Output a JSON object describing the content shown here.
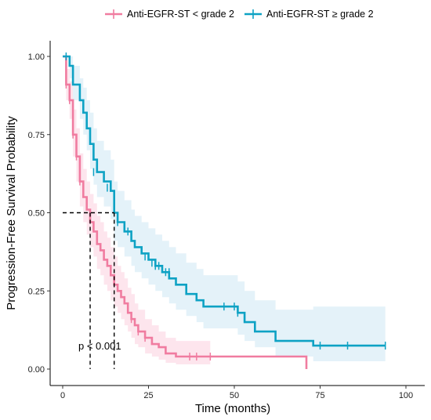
{
  "chart_data": {
    "type": "line",
    "subtype": "kaplan-meier survival curve",
    "title": "",
    "xlabel": "Time (months)",
    "ylabel": "Progression-Free Survival Probability",
    "xlim": [
      0,
      100
    ],
    "ylim": [
      0,
      1
    ],
    "xticks": [
      0,
      25,
      50,
      75,
      100
    ],
    "yticks": [
      "0.00",
      "0.25",
      "0.50",
      "0.75",
      "1.00"
    ],
    "grid": false,
    "legend_position": "top",
    "annotation": "p < 0.001",
    "median_reference": {
      "y": 0.5,
      "x_values": [
        8,
        15
      ]
    },
    "series": [
      {
        "name": "Anti-EGFR-ST < grade 2",
        "color": "#f07ca0",
        "band_color": "#fde1ea",
        "steps": [
          [
            0,
            1.0
          ],
          [
            1,
            0.91
          ],
          [
            2,
            0.86
          ],
          [
            3,
            0.75
          ],
          [
            4,
            0.68
          ],
          [
            5,
            0.6
          ],
          [
            6,
            0.55
          ],
          [
            7,
            0.51
          ],
          [
            8,
            0.47
          ],
          [
            9,
            0.44
          ],
          [
            10,
            0.4
          ],
          [
            11,
            0.38
          ],
          [
            12,
            0.35
          ],
          [
            13,
            0.33
          ],
          [
            14,
            0.3
          ],
          [
            15,
            0.27
          ],
          [
            16,
            0.25
          ],
          [
            17,
            0.23
          ],
          [
            18,
            0.21
          ],
          [
            19,
            0.18
          ],
          [
            20,
            0.16
          ],
          [
            21,
            0.14
          ],
          [
            22,
            0.12
          ],
          [
            24,
            0.1
          ],
          [
            26,
            0.08
          ],
          [
            28,
            0.07
          ],
          [
            30,
            0.05
          ],
          [
            33,
            0.04
          ],
          [
            71,
            0.0
          ]
        ],
        "lower": [
          [
            0,
            1.0
          ],
          [
            1,
            0.86
          ],
          [
            2,
            0.8
          ],
          [
            3,
            0.68
          ],
          [
            4,
            0.6
          ],
          [
            5,
            0.52
          ],
          [
            6,
            0.47
          ],
          [
            7,
            0.43
          ],
          [
            8,
            0.39
          ],
          [
            9,
            0.36
          ],
          [
            10,
            0.32
          ],
          [
            11,
            0.3
          ],
          [
            12,
            0.27
          ],
          [
            13,
            0.25
          ],
          [
            14,
            0.22
          ],
          [
            15,
            0.2
          ],
          [
            16,
            0.18
          ],
          [
            17,
            0.16
          ],
          [
            18,
            0.14
          ],
          [
            19,
            0.12
          ],
          [
            20,
            0.1
          ],
          [
            21,
            0.08
          ],
          [
            22,
            0.07
          ],
          [
            24,
            0.05
          ],
          [
            26,
            0.04
          ],
          [
            28,
            0.03
          ],
          [
            30,
            0.02
          ],
          [
            33,
            0.015
          ],
          [
            43,
            0.015
          ]
        ],
        "upper": [
          [
            0,
            1.0
          ],
          [
            1,
            0.96
          ],
          [
            2,
            0.92
          ],
          [
            3,
            0.83
          ],
          [
            4,
            0.77
          ],
          [
            5,
            0.69
          ],
          [
            6,
            0.64
          ],
          [
            7,
            0.6
          ],
          [
            8,
            0.56
          ],
          [
            9,
            0.53
          ],
          [
            10,
            0.49
          ],
          [
            11,
            0.47
          ],
          [
            12,
            0.44
          ],
          [
            13,
            0.42
          ],
          [
            14,
            0.39
          ],
          [
            15,
            0.36
          ],
          [
            16,
            0.33
          ],
          [
            17,
            0.31
          ],
          [
            18,
            0.29
          ],
          [
            19,
            0.26
          ],
          [
            20,
            0.24
          ],
          [
            21,
            0.21
          ],
          [
            22,
            0.19
          ],
          [
            24,
            0.16
          ],
          [
            26,
            0.14
          ],
          [
            28,
            0.12
          ],
          [
            30,
            0.1
          ],
          [
            33,
            0.09
          ],
          [
            43,
            0.09
          ]
        ],
        "censored": [
          [
            1,
            0.91
          ],
          [
            2,
            0.86
          ],
          [
            3,
            0.75
          ],
          [
            4,
            0.68
          ],
          [
            5,
            0.6
          ],
          [
            19,
            0.19
          ],
          [
            20,
            0.16
          ],
          [
            22,
            0.12
          ],
          [
            24,
            0.1
          ],
          [
            30,
            0.06
          ],
          [
            37,
            0.04
          ],
          [
            39,
            0.04
          ],
          [
            43,
            0.04
          ]
        ]
      },
      {
        "name": "Anti-EGFR-ST ≥ grade 2",
        "color": "#0ea2c4",
        "band_color": "#dff0f8",
        "steps": [
          [
            0,
            1.0
          ],
          [
            2,
            0.97
          ],
          [
            3,
            0.91
          ],
          [
            5,
            0.86
          ],
          [
            6,
            0.82
          ],
          [
            7,
            0.77
          ],
          [
            8,
            0.72
          ],
          [
            9,
            0.67
          ],
          [
            10,
            0.63
          ],
          [
            12,
            0.6
          ],
          [
            14,
            0.57
          ],
          [
            15,
            0.5
          ],
          [
            16,
            0.47
          ],
          [
            18,
            0.44
          ],
          [
            20,
            0.41
          ],
          [
            21,
            0.39
          ],
          [
            23,
            0.37
          ],
          [
            25,
            0.35
          ],
          [
            27,
            0.33
          ],
          [
            29,
            0.31
          ],
          [
            31,
            0.29
          ],
          [
            33,
            0.27
          ],
          [
            36,
            0.24
          ],
          [
            39,
            0.22
          ],
          [
            41,
            0.2
          ],
          [
            51,
            0.18
          ],
          [
            53,
            0.15
          ],
          [
            56,
            0.12
          ],
          [
            62,
            0.09
          ],
          [
            73,
            0.075
          ],
          [
            94,
            0.075
          ]
        ],
        "lower": [
          [
            0,
            1.0
          ],
          [
            2,
            0.93
          ],
          [
            3,
            0.86
          ],
          [
            5,
            0.8
          ],
          [
            6,
            0.75
          ],
          [
            7,
            0.7
          ],
          [
            8,
            0.64
          ],
          [
            9,
            0.59
          ],
          [
            10,
            0.55
          ],
          [
            12,
            0.52
          ],
          [
            14,
            0.48
          ],
          [
            15,
            0.41
          ],
          [
            16,
            0.39
          ],
          [
            18,
            0.36
          ],
          [
            20,
            0.33
          ],
          [
            21,
            0.31
          ],
          [
            23,
            0.29
          ],
          [
            25,
            0.27
          ],
          [
            27,
            0.25
          ],
          [
            29,
            0.23
          ],
          [
            31,
            0.21
          ],
          [
            33,
            0.19
          ],
          [
            36,
            0.17
          ],
          [
            39,
            0.15
          ],
          [
            41,
            0.13
          ],
          [
            51,
            0.11
          ],
          [
            53,
            0.09
          ],
          [
            56,
            0.07
          ],
          [
            62,
            0.04
          ],
          [
            73,
            0.025
          ],
          [
            94,
            0.025
          ]
        ],
        "upper": [
          [
            0,
            1.0
          ],
          [
            2,
            1.0
          ],
          [
            3,
            0.97
          ],
          [
            5,
            0.93
          ],
          [
            6,
            0.9
          ],
          [
            7,
            0.86
          ],
          [
            8,
            0.82
          ],
          [
            9,
            0.77
          ],
          [
            10,
            0.73
          ],
          [
            12,
            0.7
          ],
          [
            14,
            0.67
          ],
          [
            15,
            0.6
          ],
          [
            16,
            0.57
          ],
          [
            18,
            0.54
          ],
          [
            20,
            0.51
          ],
          [
            21,
            0.49
          ],
          [
            23,
            0.47
          ],
          [
            25,
            0.45
          ],
          [
            27,
            0.43
          ],
          [
            29,
            0.41
          ],
          [
            31,
            0.39
          ],
          [
            33,
            0.37
          ],
          [
            36,
            0.34
          ],
          [
            39,
            0.32
          ],
          [
            41,
            0.3
          ],
          [
            51,
            0.28
          ],
          [
            53,
            0.25
          ],
          [
            56,
            0.22
          ],
          [
            62,
            0.19
          ],
          [
            73,
            0.2
          ],
          [
            94,
            0.2
          ]
        ],
        "censored": [
          [
            1,
            1.0
          ],
          [
            9,
            0.63
          ],
          [
            13,
            0.58
          ],
          [
            16,
            0.47
          ],
          [
            19,
            0.44
          ],
          [
            20,
            0.43
          ],
          [
            24,
            0.36
          ],
          [
            26,
            0.34
          ],
          [
            27,
            0.33
          ],
          [
            28,
            0.33
          ],
          [
            30,
            0.31
          ],
          [
            31,
            0.31
          ],
          [
            36,
            0.25
          ],
          [
            47,
            0.2
          ],
          [
            50,
            0.2
          ],
          [
            51,
            0.18
          ],
          [
            75,
            0.075
          ],
          [
            83,
            0.075
          ],
          [
            94,
            0.075
          ]
        ]
      }
    ]
  }
}
